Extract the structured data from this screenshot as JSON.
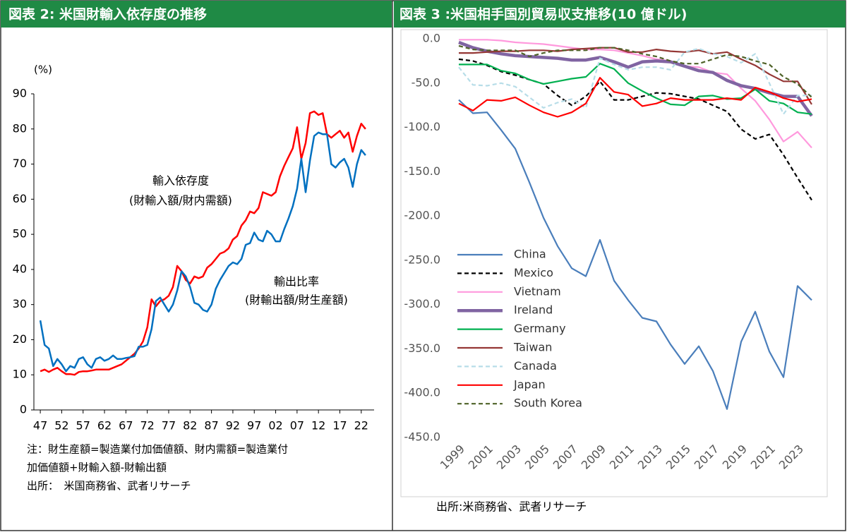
{
  "chart_data": [
    {
      "type": "line",
      "title": "図表 2: 米国財輸入依存度の推移",
      "ylabel": "(%)",
      "x": [
        1947,
        1948,
        1949,
        1950,
        1951,
        1952,
        1953,
        1954,
        1955,
        1956,
        1957,
        1958,
        1959,
        1960,
        1961,
        1962,
        1963,
        1964,
        1965,
        1966,
        1967,
        1968,
        1969,
        1970,
        1971,
        1972,
        1973,
        1974,
        1975,
        1976,
        1977,
        1978,
        1979,
        1980,
        1981,
        1982,
        1983,
        1984,
        1985,
        1986,
        1987,
        1988,
        1989,
        1990,
        1991,
        1992,
        1993,
        1994,
        1995,
        1996,
        1997,
        1998,
        1999,
        2000,
        2001,
        2002,
        2003,
        2004,
        2005,
        2006,
        2007,
        2008,
        2009,
        2010,
        2011,
        2012,
        2013,
        2014,
        2015,
        2016,
        2017,
        2018,
        2019,
        2020,
        2021,
        2022,
        2023
      ],
      "series": [
        {
          "name": "輸入依存度",
          "formula": "(財輸入額/財内需額)",
          "color": "#ff0000",
          "values": [
            11,
            11.5,
            10.8,
            11.5,
            12,
            11,
            10.2,
            10.2,
            10,
            10.8,
            11,
            11,
            11.2,
            11.5,
            11.5,
            11.5,
            11.5,
            12,
            12.5,
            13,
            14,
            15,
            16,
            17.5,
            19.5,
            23.5,
            31.5,
            29.5,
            31,
            31.5,
            32.5,
            35,
            41,
            39.5,
            37,
            36,
            38,
            37.5,
            38,
            40.5,
            41.5,
            43,
            44.5,
            45,
            46,
            48.5,
            49.5,
            52.5,
            54,
            56.5,
            56,
            57.5,
            62,
            61.5,
            61,
            62,
            66.5,
            69.5,
            72,
            74.5,
            80.5,
            71.5,
            76,
            84.5,
            85,
            84,
            84.5,
            78.5,
            77.5,
            78.5,
            79.5,
            77.5,
            79,
            73.5,
            78,
            81.5,
            80
          ]
        },
        {
          "name": "輸出比率",
          "formula": "(財輸出額/財生産額)",
          "color": "#0070c0",
          "values": [
            25.5,
            18.5,
            17.5,
            12.5,
            14.5,
            13,
            11,
            12.5,
            12,
            14.5,
            15,
            13,
            12,
            14.5,
            15,
            14,
            14.5,
            15.5,
            14.5,
            14.5,
            14.8,
            15,
            15.3,
            18,
            18,
            18.5,
            23,
            31,
            32,
            30,
            28,
            30,
            34,
            39.5,
            38,
            35,
            30.5,
            30,
            28.5,
            28,
            30,
            34.5,
            37,
            39,
            41,
            42,
            41.5,
            43,
            47,
            47.5,
            50.5,
            48.5,
            48,
            51,
            50,
            48,
            48,
            51.5,
            54.5,
            58,
            63,
            71.5,
            62,
            71,
            78,
            79,
            78.5,
            78.5,
            70,
            69,
            70.5,
            71.5,
            69,
            63.5,
            70,
            74,
            72.5
          ]
        }
      ],
      "xlim": [
        1945.5,
        2025
      ],
      "xticks": [
        {
          "value": 1947,
          "label": "47"
        },
        {
          "value": 1952,
          "label": "52"
        },
        {
          "value": 1957,
          "label": "57"
        },
        {
          "value": 1962,
          "label": "62"
        },
        {
          "value": 1967,
          "label": "67"
        },
        {
          "value": 1972,
          "label": "72"
        },
        {
          "value": 1977,
          "label": "77"
        },
        {
          "value": 1982,
          "label": "82"
        },
        {
          "value": 1987,
          "label": "87"
        },
        {
          "value": 1992,
          "label": "92"
        },
        {
          "value": 1997,
          "label": "97"
        },
        {
          "value": 2002,
          "label": "02"
        },
        {
          "value": 2007,
          "label": "07"
        },
        {
          "value": 2012,
          "label": "12"
        },
        {
          "value": 2017,
          "label": "17"
        },
        {
          "value": 2022,
          "label": "22"
        }
      ],
      "ylim": [
        0,
        90
      ],
      "yticks": [
        0,
        10,
        20,
        30,
        40,
        50,
        60,
        70,
        80,
        90
      ],
      "grid": false,
      "notes": [
        "注：財生産額=製造業付加価値額、財内需額=製造業付",
        "加価値額+財輸入額-財輸出額",
        "出所：　米国商務省、武者リサーチ"
      ]
    },
    {
      "type": "line",
      "title": "図表 3 :米国相手国別貿易収支推移(10 億ドル)",
      "x": [
        1999,
        2000,
        2001,
        2002,
        2003,
        2004,
        2005,
        2006,
        2007,
        2008,
        2009,
        2010,
        2011,
        2012,
        2013,
        2014,
        2015,
        2016,
        2017,
        2018,
        2019,
        2020,
        2021,
        2022,
        2023,
        2024
      ],
      "series": [
        {
          "name": "China",
          "color": "#4a7ebb",
          "dash": false,
          "bold": false,
          "values": [
            -69,
            -84,
            -83,
            -103,
            -124,
            -162,
            -202,
            -234,
            -259,
            -268,
            -227,
            -273,
            -295,
            -315,
            -319,
            -345,
            -367,
            -347,
            -375,
            -418,
            -342,
            -308,
            -353,
            -382,
            -279,
            -295
          ]
        },
        {
          "name": "Mexico",
          "color": "#000000",
          "dash": true,
          "bold": false,
          "values": [
            -23,
            -25,
            -30,
            -37,
            -41,
            -46,
            -51,
            -64,
            -75,
            -65,
            -48,
            -69,
            -69,
            -65,
            -61,
            -62,
            -65,
            -68,
            -75,
            -82,
            -102,
            -113,
            -108,
            -131,
            -157,
            -182
          ]
        },
        {
          "name": "Vietnam",
          "color": "#ff99dd",
          "dash": false,
          "bold": false,
          "values": [
            -1,
            -1,
            -1,
            -2,
            -4,
            -5,
            -6,
            -8,
            -10,
            -12,
            -12,
            -13,
            -16,
            -19,
            -23,
            -25,
            -31,
            -32,
            -38,
            -40,
            -56,
            -70,
            -91,
            -116,
            -105,
            -123
          ]
        },
        {
          "name": "Ireland",
          "color": "#8064a2",
          "dash": false,
          "bold": true,
          "values": [
            -4,
            -10,
            -14,
            -17,
            -19,
            -20,
            -21,
            -22,
            -24,
            -24,
            -21,
            -26,
            -32,
            -26,
            -25,
            -26,
            -31,
            -36,
            -38,
            -47,
            -53,
            -56,
            -61,
            -65,
            -65,
            -87
          ]
        },
        {
          "name": "Germany",
          "color": "#00b050",
          "dash": false,
          "bold": false,
          "values": [
            -29,
            -29,
            -29,
            -36,
            -39,
            -46,
            -51,
            -48,
            -45,
            -43,
            -28,
            -34,
            -50,
            -59,
            -67,
            -74,
            -75,
            -65,
            -64,
            -68,
            -67,
            -57,
            -70,
            -73,
            -83,
            -85
          ]
        },
        {
          "name": "Taiwan",
          "color": "#953735",
          "dash": false,
          "bold": false,
          "values": [
            -16,
            -16,
            -15,
            -14,
            -14,
            -13,
            -13,
            -14,
            -12,
            -11,
            -10,
            -10,
            -15,
            -15,
            -12,
            -14,
            -15,
            -13,
            -17,
            -15,
            -23,
            -30,
            -40,
            -48,
            -48,
            -74
          ]
        },
        {
          "name": "Canada",
          "color": "#b7dde8",
          "dash": true,
          "bold": false,
          "values": [
            -32,
            -52,
            -53,
            -50,
            -54,
            -66,
            -78,
            -72,
            -68,
            -78,
            -22,
            -29,
            -35,
            -32,
            -32,
            -35,
            -15,
            -11,
            -17,
            -20,
            -27,
            -17,
            -50,
            -85,
            -64,
            -64
          ]
        },
        {
          "name": "Japan",
          "color": "#ff0000",
          "dash": false,
          "bold": false,
          "values": [
            -73,
            -81,
            -69,
            -70,
            -66,
            -75,
            -83,
            -88,
            -83,
            -73,
            -44,
            -60,
            -63,
            -76,
            -73,
            -67,
            -69,
            -69,
            -69,
            -67,
            -69,
            -55,
            -60,
            -67,
            -71,
            -68
          ]
        },
        {
          "name": "South Korea",
          "color": "#4f6228",
          "dash": true,
          "bold": false,
          "values": [
            -8,
            -12,
            -13,
            -13,
            -13,
            -20,
            -16,
            -13,
            -13,
            -13,
            -10,
            -10,
            -13,
            -17,
            -20,
            -25,
            -28,
            -28,
            -23,
            -18,
            -20,
            -25,
            -29,
            -43,
            -51,
            -66
          ]
        }
      ],
      "xlim": [
        1998,
        2025
      ],
      "xticks": [
        1999,
        2001,
        2003,
        2005,
        2007,
        2009,
        2011,
        2013,
        2015,
        2017,
        2019,
        2021,
        2023
      ],
      "ylim": [
        -450,
        0
      ],
      "yticks": [
        {
          "value": -450,
          "label": "-450.0"
        },
        {
          "value": -400,
          "label": "-400.0"
        },
        {
          "value": -350,
          "label": "-350.0"
        },
        {
          "value": -300,
          "label": "-300.0"
        },
        {
          "value": -250,
          "label": "-250.0"
        },
        {
          "value": -200,
          "label": "-200.0"
        },
        {
          "value": -150,
          "label": "-150.0"
        },
        {
          "value": -100,
          "label": "-100.0"
        },
        {
          "value": -50,
          "label": "-50.0"
        },
        {
          "value": 0,
          "label": "0.0"
        }
      ],
      "grid": false,
      "legend": "lower-left",
      "source": "出所:米商務省、武者リサーチ"
    }
  ]
}
